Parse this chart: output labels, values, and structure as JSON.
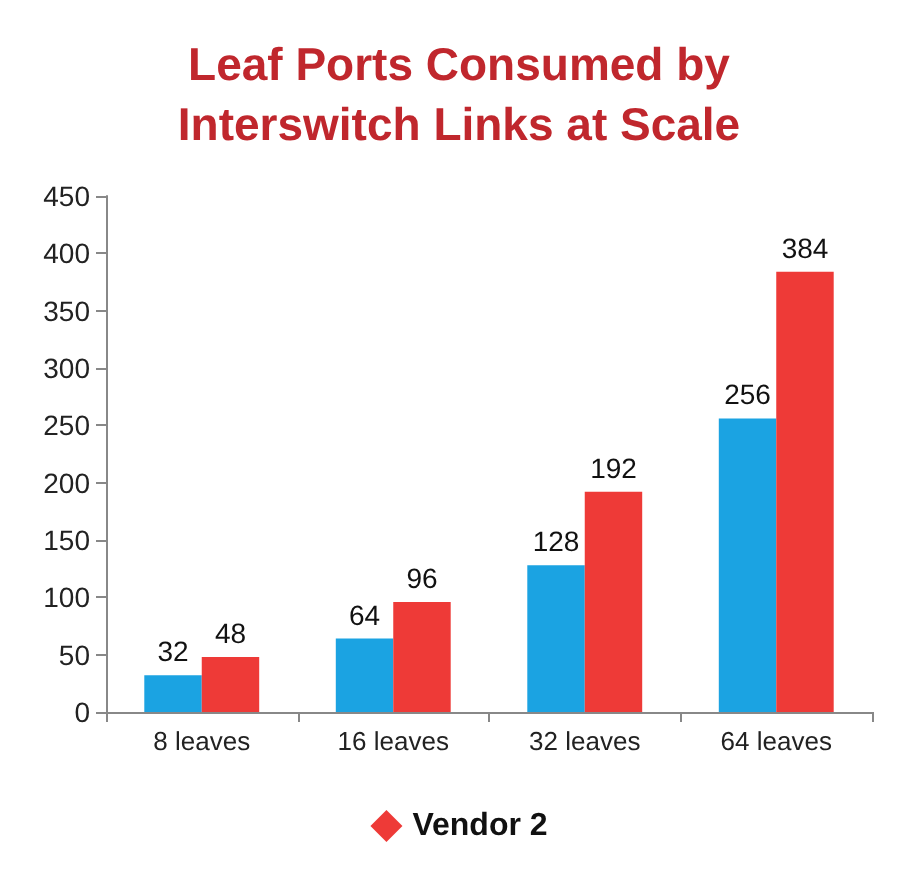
{
  "chart_data": {
    "type": "bar",
    "title": "Leaf Ports Consumed by\nInterswitch Links at Scale",
    "categories": [
      "8 leaves",
      "16 leaves",
      "32 leaves",
      "64 leaves"
    ],
    "series": [
      {
        "color": "#1ba3e2",
        "values": [
          32,
          64,
          128,
          256
        ]
      },
      {
        "name": "Vendor 2",
        "color": "#ee3a37",
        "values": [
          48,
          96,
          192,
          384
        ]
      }
    ],
    "ylim": [
      0,
      450
    ],
    "yticks": [
      0,
      50,
      100,
      150,
      200,
      250,
      300,
      350,
      400,
      450
    ],
    "grid": false,
    "legend": "bottom",
    "marker": "diamond",
    "data_labels": true
  }
}
